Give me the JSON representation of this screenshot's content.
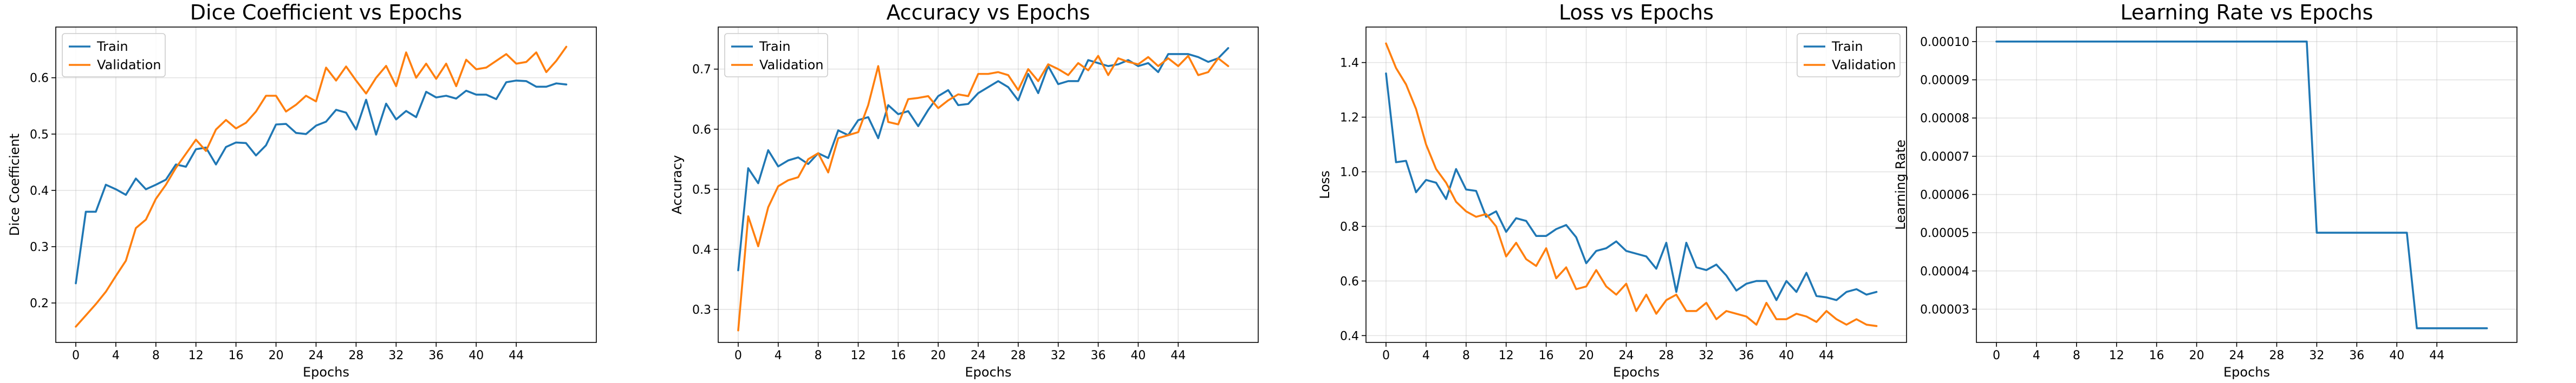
{
  "colors": {
    "train": "#1f77b4",
    "validation": "#ff7f0e"
  },
  "chart_data": [
    {
      "type": "line",
      "title": "Dice Coefficient vs Epochs",
      "xlabel": "Epochs",
      "ylabel": "Dice Coefficient",
      "xlim": [
        -2,
        52
      ],
      "ylim": [
        0.13,
        0.69
      ],
      "xticks": [
        0,
        4,
        8,
        12,
        16,
        20,
        24,
        28,
        32,
        36,
        40,
        44
      ],
      "yticks": [
        0.2,
        0.3,
        0.4,
        0.5,
        0.6
      ],
      "ytick_labels": [
        "0.2",
        "0.3",
        "0.4",
        "0.5",
        "0.6"
      ],
      "grid": true,
      "legend": "top-left",
      "x": [
        0,
        1,
        2,
        3,
        4,
        5,
        6,
        7,
        8,
        9,
        10,
        11,
        12,
        13,
        14,
        15,
        16,
        17,
        18,
        19,
        20,
        21,
        22,
        23,
        24,
        25,
        26,
        27,
        28,
        29,
        30,
        31,
        32,
        33,
        34,
        35,
        36,
        37,
        38,
        39,
        40,
        41,
        42,
        43,
        44,
        45,
        46,
        47,
        48,
        49
      ],
      "series": [
        {
          "name": "Train",
          "color_key": "train",
          "values": [
            0.235,
            0.362,
            0.362,
            0.41,
            0.402,
            0.392,
            0.421,
            0.402,
            0.41,
            0.419,
            0.446,
            0.442,
            0.473,
            0.476,
            0.446,
            0.477,
            0.485,
            0.484,
            0.462,
            0.48,
            0.517,
            0.518,
            0.502,
            0.5,
            0.515,
            0.522,
            0.543,
            0.538,
            0.508,
            0.561,
            0.499,
            0.554,
            0.526,
            0.541,
            0.53,
            0.575,
            0.565,
            0.568,
            0.563,
            0.577,
            0.57,
            0.57,
            0.562,
            0.592,
            0.595,
            0.594,
            0.584,
            0.584,
            0.59,
            0.588
          ]
        },
        {
          "name": "Validation",
          "color_key": "validation",
          "values": [
            0.158,
            0.178,
            0.198,
            0.22,
            0.248,
            0.275,
            0.333,
            0.348,
            0.385,
            0.41,
            0.44,
            0.465,
            0.49,
            0.47,
            0.508,
            0.525,
            0.51,
            0.52,
            0.54,
            0.568,
            0.568,
            0.54,
            0.552,
            0.568,
            0.558,
            0.618,
            0.595,
            0.62,
            0.595,
            0.572,
            0.6,
            0.621,
            0.585,
            0.645,
            0.6,
            0.625,
            0.598,
            0.625,
            0.585,
            0.632,
            0.615,
            0.618,
            0.63,
            0.642,
            0.625,
            0.628,
            0.645,
            0.61,
            0.63,
            0.655
          ]
        }
      ]
    },
    {
      "type": "line",
      "title": "Accuracy vs Epochs",
      "xlabel": "Epochs",
      "ylabel": "Accuracy",
      "xlim": [
        -2,
        52
      ],
      "ylim": [
        0.245,
        0.77
      ],
      "xticks": [
        0,
        4,
        8,
        12,
        16,
        20,
        24,
        28,
        32,
        36,
        40,
        44
      ],
      "yticks": [
        0.3,
        0.4,
        0.5,
        0.6,
        0.7
      ],
      "ytick_labels": [
        "0.3",
        "0.4",
        "0.5",
        "0.6",
        "0.7"
      ],
      "grid": true,
      "legend": "top-left",
      "x": [
        0,
        1,
        2,
        3,
        4,
        5,
        6,
        7,
        8,
        9,
        10,
        11,
        12,
        13,
        14,
        15,
        16,
        17,
        18,
        19,
        20,
        21,
        22,
        23,
        24,
        25,
        26,
        27,
        28,
        29,
        30,
        31,
        32,
        33,
        34,
        35,
        36,
        37,
        38,
        39,
        40,
        41,
        42,
        43,
        44,
        45,
        46,
        47,
        48,
        49
      ],
      "series": [
        {
          "name": "Train",
          "color_key": "train",
          "values": [
            0.365,
            0.535,
            0.51,
            0.565,
            0.538,
            0.548,
            0.553,
            0.542,
            0.56,
            0.552,
            0.598,
            0.59,
            0.615,
            0.62,
            0.585,
            0.64,
            0.625,
            0.63,
            0.605,
            0.632,
            0.655,
            0.665,
            0.64,
            0.642,
            0.66,
            0.67,
            0.68,
            0.67,
            0.648,
            0.692,
            0.66,
            0.705,
            0.675,
            0.68,
            0.68,
            0.715,
            0.71,
            0.705,
            0.708,
            0.715,
            0.705,
            0.71,
            0.695,
            0.725,
            0.725,
            0.725,
            0.72,
            0.712,
            0.718,
            0.735
          ]
        },
        {
          "name": "Validation",
          "color_key": "validation",
          "values": [
            0.265,
            0.455,
            0.405,
            0.47,
            0.505,
            0.515,
            0.52,
            0.55,
            0.56,
            0.528,
            0.585,
            0.59,
            0.595,
            0.64,
            0.705,
            0.612,
            0.608,
            0.65,
            0.652,
            0.655,
            0.635,
            0.648,
            0.658,
            0.655,
            0.692,
            0.692,
            0.695,
            0.69,
            0.665,
            0.7,
            0.68,
            0.708,
            0.7,
            0.69,
            0.71,
            0.698,
            0.722,
            0.69,
            0.718,
            0.712,
            0.708,
            0.72,
            0.705,
            0.718,
            0.705,
            0.722,
            0.69,
            0.695,
            0.718,
            0.705
          ]
        }
      ]
    },
    {
      "type": "line",
      "title": "Loss vs Epochs",
      "xlabel": "Epochs",
      "ylabel": "Loss",
      "xlim": [
        -2,
        52
      ],
      "ylim": [
        0.375,
        1.53
      ],
      "xticks": [
        0,
        4,
        8,
        12,
        16,
        20,
        24,
        28,
        32,
        36,
        40,
        44
      ],
      "yticks": [
        0.4,
        0.6,
        0.8,
        1.0,
        1.2,
        1.4
      ],
      "ytick_labels": [
        "0.4",
        "0.6",
        "0.8",
        "1.0",
        "1.2",
        "1.4"
      ],
      "grid": true,
      "legend": "top-right",
      "x": [
        0,
        1,
        2,
        3,
        4,
        5,
        6,
        7,
        8,
        9,
        10,
        11,
        12,
        13,
        14,
        15,
        16,
        17,
        18,
        19,
        20,
        21,
        22,
        23,
        24,
        25,
        26,
        27,
        28,
        29,
        30,
        31,
        32,
        33,
        34,
        35,
        36,
        37,
        38,
        39,
        40,
        41,
        42,
        43,
        44,
        45,
        46,
        47,
        48,
        49
      ],
      "series": [
        {
          "name": "Train",
          "color_key": "train",
          "values": [
            1.36,
            1.035,
            1.04,
            0.925,
            0.97,
            0.96,
            0.9,
            1.01,
            0.935,
            0.93,
            0.835,
            0.855,
            0.78,
            0.83,
            0.82,
            0.765,
            0.765,
            0.79,
            0.805,
            0.76,
            0.665,
            0.71,
            0.72,
            0.745,
            0.71,
            0.7,
            0.69,
            0.645,
            0.74,
            0.56,
            0.74,
            0.65,
            0.64,
            0.66,
            0.62,
            0.565,
            0.59,
            0.6,
            0.6,
            0.53,
            0.6,
            0.56,
            0.63,
            0.545,
            0.54,
            0.53,
            0.56,
            0.57,
            0.55,
            0.56
          ]
        },
        {
          "name": "Validation",
          "color_key": "validation",
          "values": [
            1.47,
            1.38,
            1.32,
            1.23,
            1.1,
            1.01,
            0.96,
            0.89,
            0.855,
            0.835,
            0.845,
            0.8,
            0.69,
            0.74,
            0.68,
            0.655,
            0.72,
            0.61,
            0.65,
            0.57,
            0.58,
            0.64,
            0.58,
            0.55,
            0.59,
            0.49,
            0.55,
            0.48,
            0.53,
            0.55,
            0.49,
            0.49,
            0.52,
            0.46,
            0.49,
            0.48,
            0.47,
            0.44,
            0.52,
            0.46,
            0.46,
            0.48,
            0.47,
            0.45,
            0.49,
            0.46,
            0.44,
            0.46,
            0.44,
            0.435
          ]
        }
      ]
    },
    {
      "type": "line",
      "title": "Learning Rate vs Epochs",
      "xlabel": "Epochs",
      "ylabel": "Learning Rate",
      "xlim": [
        -2,
        52
      ],
      "ylim": [
        2.13e-05,
        0.0001038
      ],
      "xticks": [
        0,
        4,
        8,
        12,
        16,
        20,
        24,
        28,
        32,
        36,
        40,
        44
      ],
      "yticks": [
        3e-05,
        4e-05,
        5e-05,
        6e-05,
        7e-05,
        8e-05,
        9e-05,
        0.0001
      ],
      "ytick_labels": [
        "0.00003",
        "0.00004",
        "0.00005",
        "0.00006",
        "0.00007",
        "0.00008",
        "0.00009",
        "0.00010"
      ],
      "grid": true,
      "legend": null,
      "x": [
        0,
        1,
        2,
        3,
        4,
        5,
        6,
        7,
        8,
        9,
        10,
        11,
        12,
        13,
        14,
        15,
        16,
        17,
        18,
        19,
        20,
        21,
        22,
        23,
        24,
        25,
        26,
        27,
        28,
        29,
        30,
        31,
        32,
        33,
        34,
        35,
        36,
        37,
        38,
        39,
        40,
        41,
        42,
        43,
        44,
        45,
        46,
        47,
        48,
        49
      ],
      "series": [
        {
          "name": "Learning Rate",
          "color_key": "train",
          "values": [
            0.0001,
            0.0001,
            0.0001,
            0.0001,
            0.0001,
            0.0001,
            0.0001,
            0.0001,
            0.0001,
            0.0001,
            0.0001,
            0.0001,
            0.0001,
            0.0001,
            0.0001,
            0.0001,
            0.0001,
            0.0001,
            0.0001,
            0.0001,
            0.0001,
            0.0001,
            0.0001,
            0.0001,
            0.0001,
            0.0001,
            0.0001,
            0.0001,
            0.0001,
            0.0001,
            0.0001,
            0.0001,
            5e-05,
            5e-05,
            5e-05,
            5e-05,
            5e-05,
            5e-05,
            5e-05,
            5e-05,
            5e-05,
            5e-05,
            2.5e-05,
            2.5e-05,
            2.5e-05,
            2.5e-05,
            2.5e-05,
            2.5e-05,
            2.5e-05,
            2.5e-05
          ]
        }
      ]
    }
  ]
}
